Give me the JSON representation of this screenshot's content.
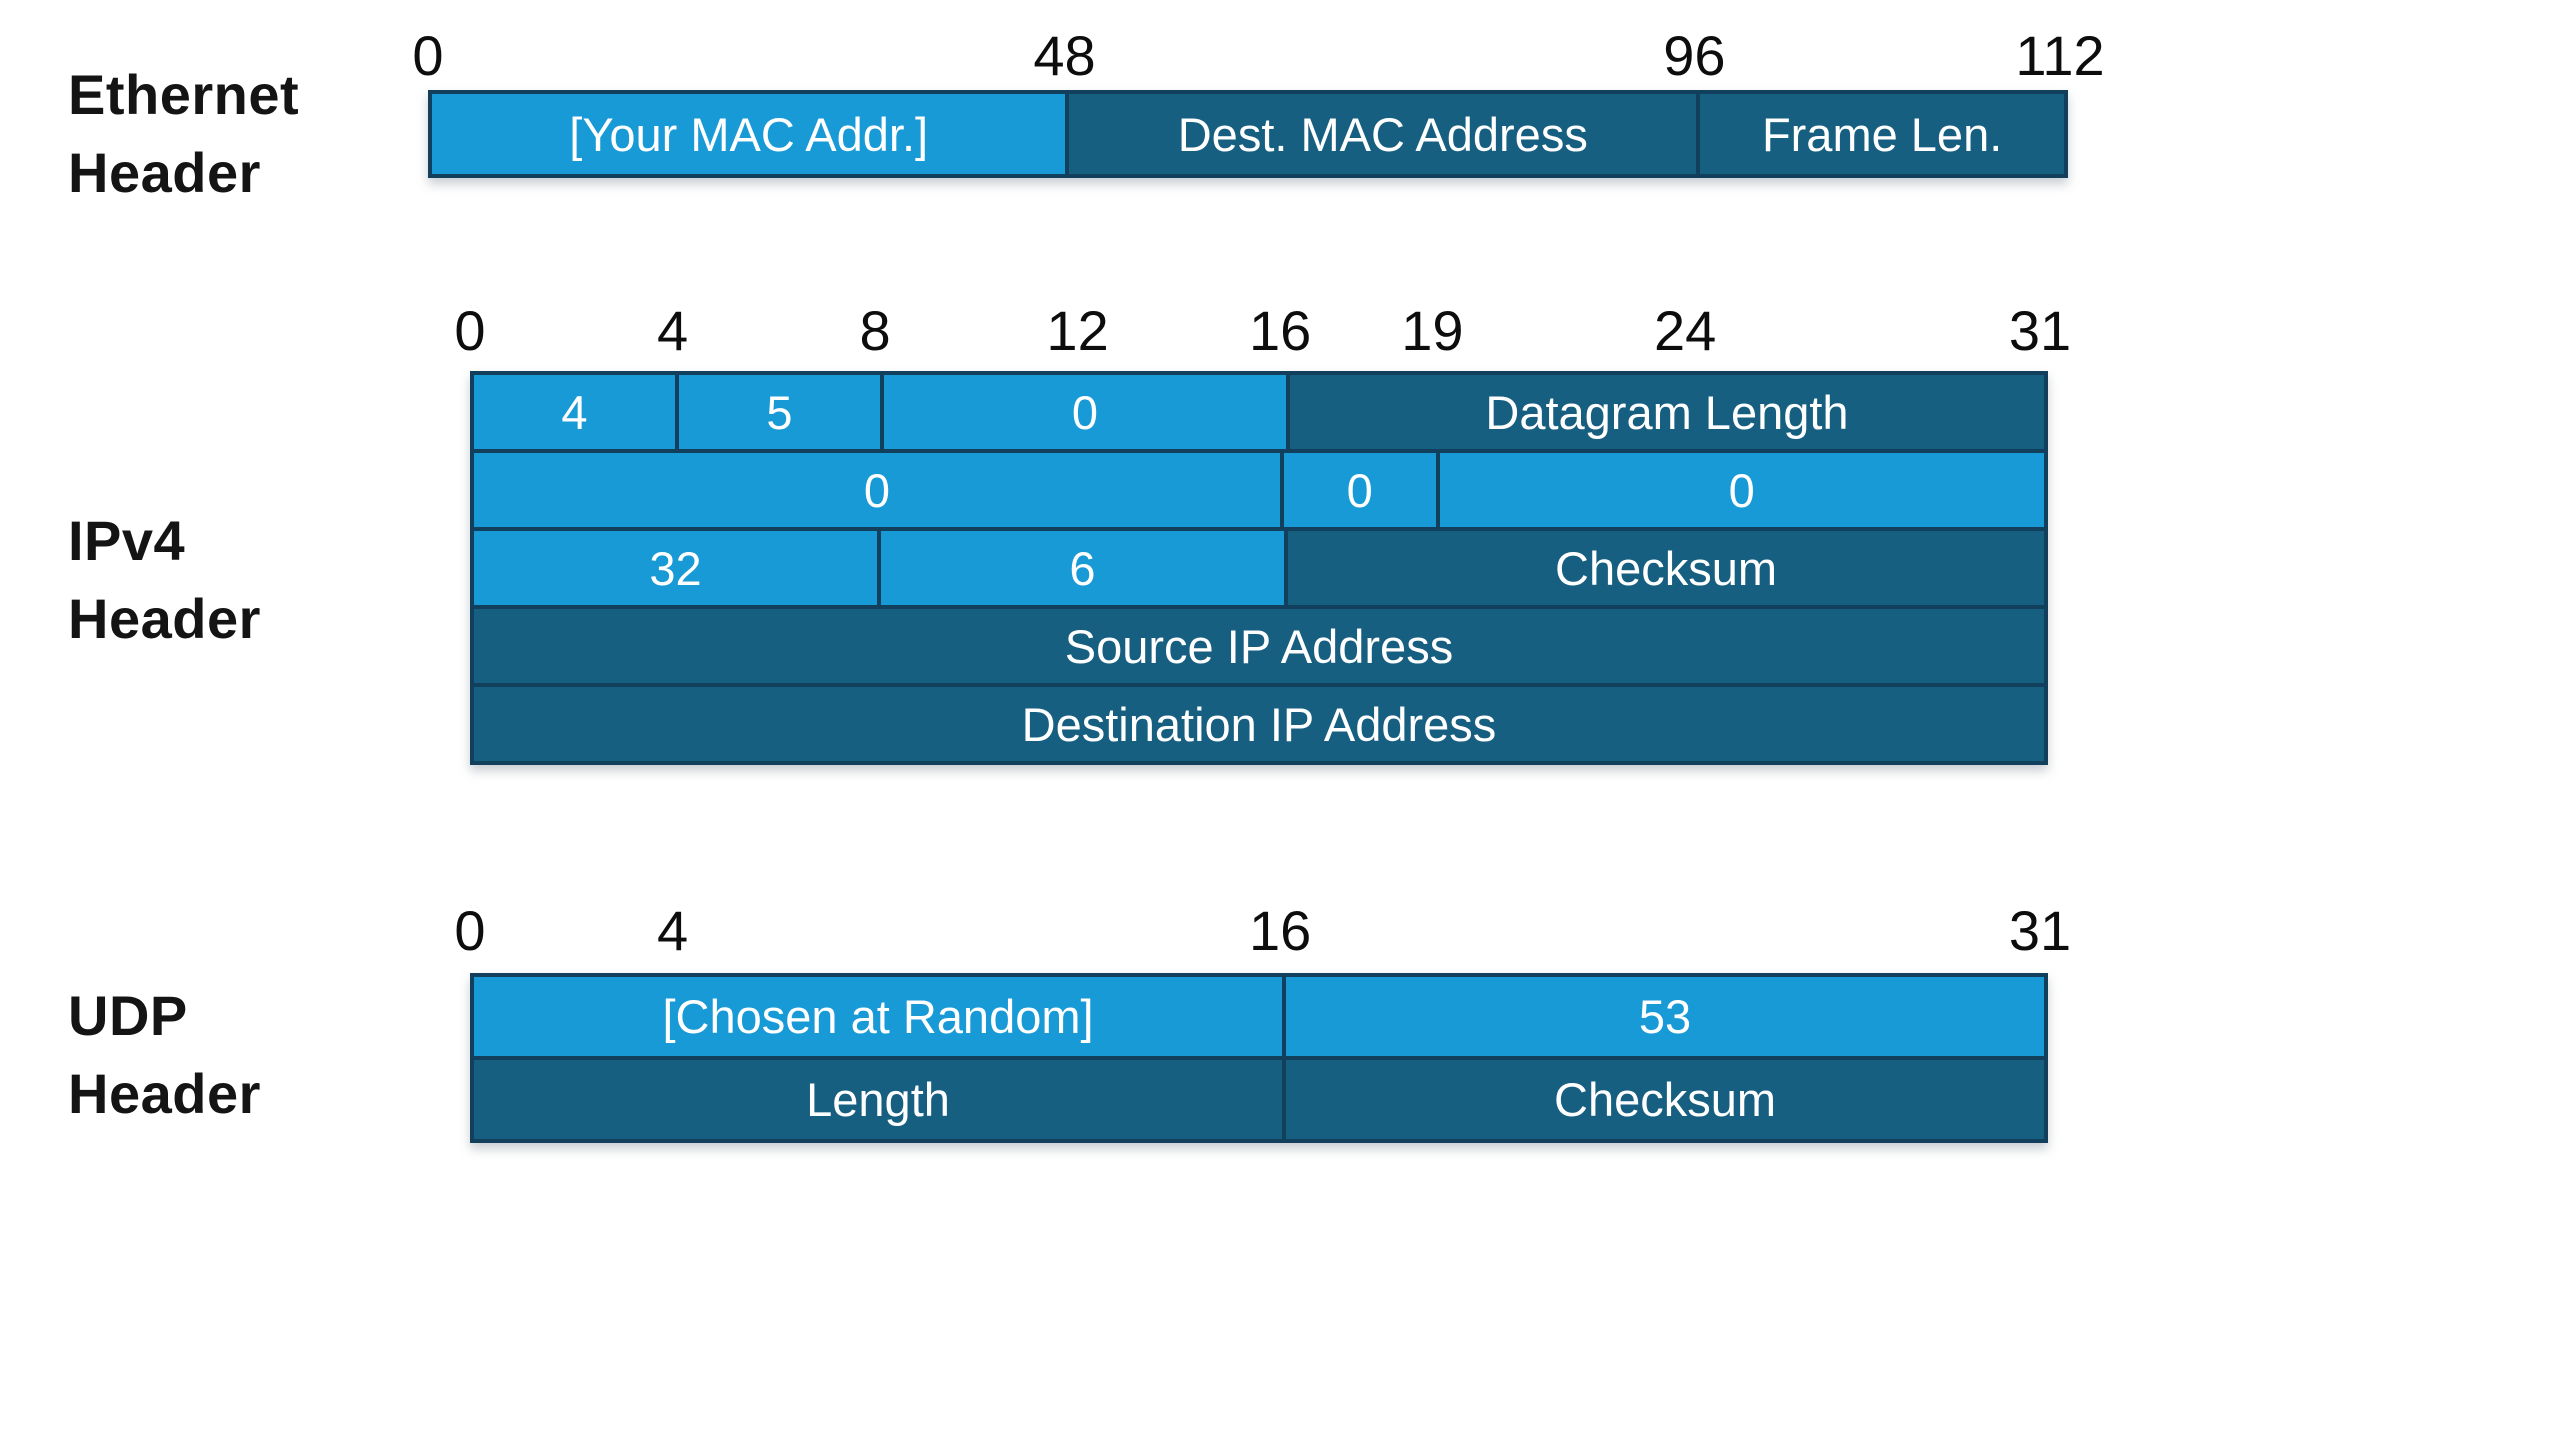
{
  "colors": {
    "light_blue": "#189ad6",
    "dark_blue": "#175f80",
    "border": "#123f5b",
    "label_text": "#141414",
    "cell_text": "#ffffff",
    "background": "#ffffff"
  },
  "sections": [
    {
      "name": "ethernet-header",
      "label_lines": [
        "Ethernet",
        "Header"
      ],
      "ticks": [
        {
          "label": "0",
          "pos": 0
        },
        {
          "label": "48",
          "pos": 39
        },
        {
          "label": "96",
          "pos": 77.6
        },
        {
          "label": "112",
          "pos": 100
        }
      ],
      "rows": [
        {
          "cells": [
            {
              "text": "[Your MAC Addr.]",
              "tone": "light",
              "span": 39
            },
            {
              "text": "Dest. MAC Address",
              "tone": "dark",
              "span": 38.6
            },
            {
              "text": "Frame Len.",
              "tone": "dark",
              "span": 22.4
            }
          ]
        }
      ]
    },
    {
      "name": "ipv4-header",
      "label_lines": [
        "IPv4",
        "Header"
      ],
      "ticks": [
        {
          "label": "0",
          "pos": 0
        },
        {
          "label": "4",
          "pos": 12.9
        },
        {
          "label": "8",
          "pos": 25.8
        },
        {
          "label": "12",
          "pos": 38.7
        },
        {
          "label": "16",
          "pos": 51.6
        },
        {
          "label": "19",
          "pos": 61.3
        },
        {
          "label": "24",
          "pos": 77.4
        },
        {
          "label": "31",
          "pos": 100
        }
      ],
      "rows": [
        {
          "cells": [
            {
              "text": "4",
              "tone": "light",
              "span": 12.9
            },
            {
              "text": "5",
              "tone": "light",
              "span": 12.9
            },
            {
              "text": "0",
              "tone": "light",
              "span": 25.8
            },
            {
              "text": "Datagram Length",
              "tone": "dark",
              "span": 48.4
            }
          ]
        },
        {
          "cells": [
            {
              "text": "0",
              "tone": "light",
              "span": 51.6
            },
            {
              "text": "0",
              "tone": "light",
              "span": 9.7
            },
            {
              "text": "0",
              "tone": "light",
              "span": 38.7
            }
          ]
        },
        {
          "cells": [
            {
              "text": "32",
              "tone": "light",
              "span": 25.8
            },
            {
              "text": "6",
              "tone": "light",
              "span": 25.8
            },
            {
              "text": "Checksum",
              "tone": "dark",
              "span": 48.4
            }
          ]
        },
        {
          "cells": [
            {
              "text": "Source IP Address",
              "tone": "dark",
              "span": 100
            }
          ]
        },
        {
          "cells": [
            {
              "text": "Destination IP Address",
              "tone": "dark",
              "span": 100
            }
          ]
        }
      ]
    },
    {
      "name": "udp-header",
      "label_lines": [
        "UDP",
        "Header"
      ],
      "ticks": [
        {
          "label": "0",
          "pos": 0
        },
        {
          "label": "4",
          "pos": 12.9
        },
        {
          "label": "16",
          "pos": 51.6
        },
        {
          "label": "31",
          "pos": 100
        }
      ],
      "rows": [
        {
          "cells": [
            {
              "text": "[Chosen at Random]",
              "tone": "light",
              "span": 51.6
            },
            {
              "text": "53",
              "tone": "light",
              "span": 48.4
            }
          ]
        },
        {
          "cells": [
            {
              "text": "Length",
              "tone": "dark",
              "span": 51.6
            },
            {
              "text": "Checksum",
              "tone": "dark",
              "span": 48.4
            }
          ]
        }
      ]
    }
  ]
}
